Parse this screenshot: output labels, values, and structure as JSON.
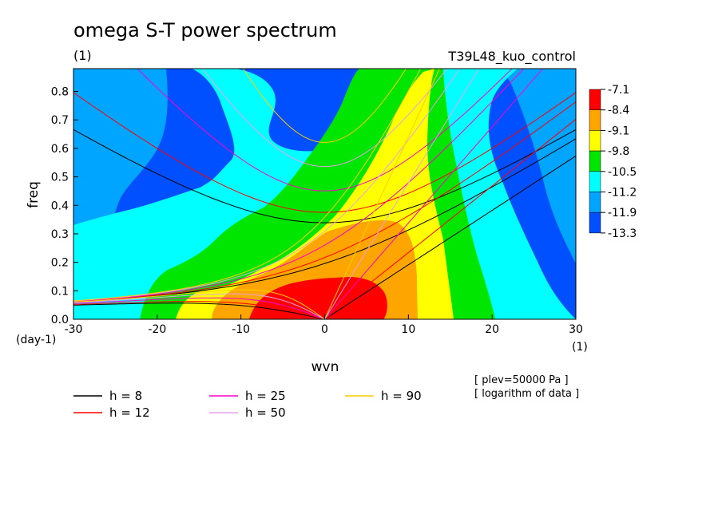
{
  "chart_data": {
    "type": "heatmap",
    "title": "omega S-T power spectrum",
    "panel_label": "(1)",
    "run_name": "T39L48_kuo_control",
    "xlabel": "wvn",
    "ylabel": "freq",
    "x_unit": "(1)",
    "y_unit": "(day-1)",
    "xlim": [
      -30,
      30
    ],
    "ylim": [
      0,
      0.88
    ],
    "x_ticks": [
      "-30",
      "-20",
      "-10",
      "0",
      "10",
      "20",
      "30"
    ],
    "y_ticks": [
      "0.0",
      "0.1",
      "0.2",
      "0.3",
      "0.4",
      "0.5",
      "0.6",
      "0.7",
      "0.8"
    ],
    "colorbar": {
      "labels": [
        "-7.1",
        "-8.4",
        "-9.1",
        "-9.8",
        "-10.5",
        "-11.2",
        "-11.9",
        "-13.3"
      ],
      "colors": [
        "#ff0000",
        "#ffa500",
        "#ffff00",
        "#00e600",
        "#00ffff",
        "#00a5ff",
        "#0050ff"
      ]
    },
    "field_levels_from_outer_to_inner": [
      {
        "level": "-11.9",
        "color": "#00a5ff"
      },
      {
        "level": "-11.2",
        "color": "#00ffff"
      },
      {
        "level": "-10.5",
        "color": "#00e600"
      },
      {
        "level": "-9.8",
        "color": "#ffff00"
      },
      {
        "level": "-9.1",
        "color": "#ffa500"
      },
      {
        "level": "-8.4",
        "color": "#ff0000"
      }
    ],
    "lowest_region_color": "#0050ff",
    "dispersion_curves": [
      {
        "label": "h =  8",
        "color": "#000000"
      },
      {
        "label": "h = 12",
        "color": "#ff0000"
      },
      {
        "label": "h = 25",
        "color": "#ff00cc"
      },
      {
        "label": "h = 50",
        "color": "#e8a0e8"
      },
      {
        "label": "h = 90",
        "color": "#ffcc00"
      }
    ],
    "notes": [
      "[ plev=50000 Pa ]",
      "[ logarithm of data ]"
    ]
  }
}
